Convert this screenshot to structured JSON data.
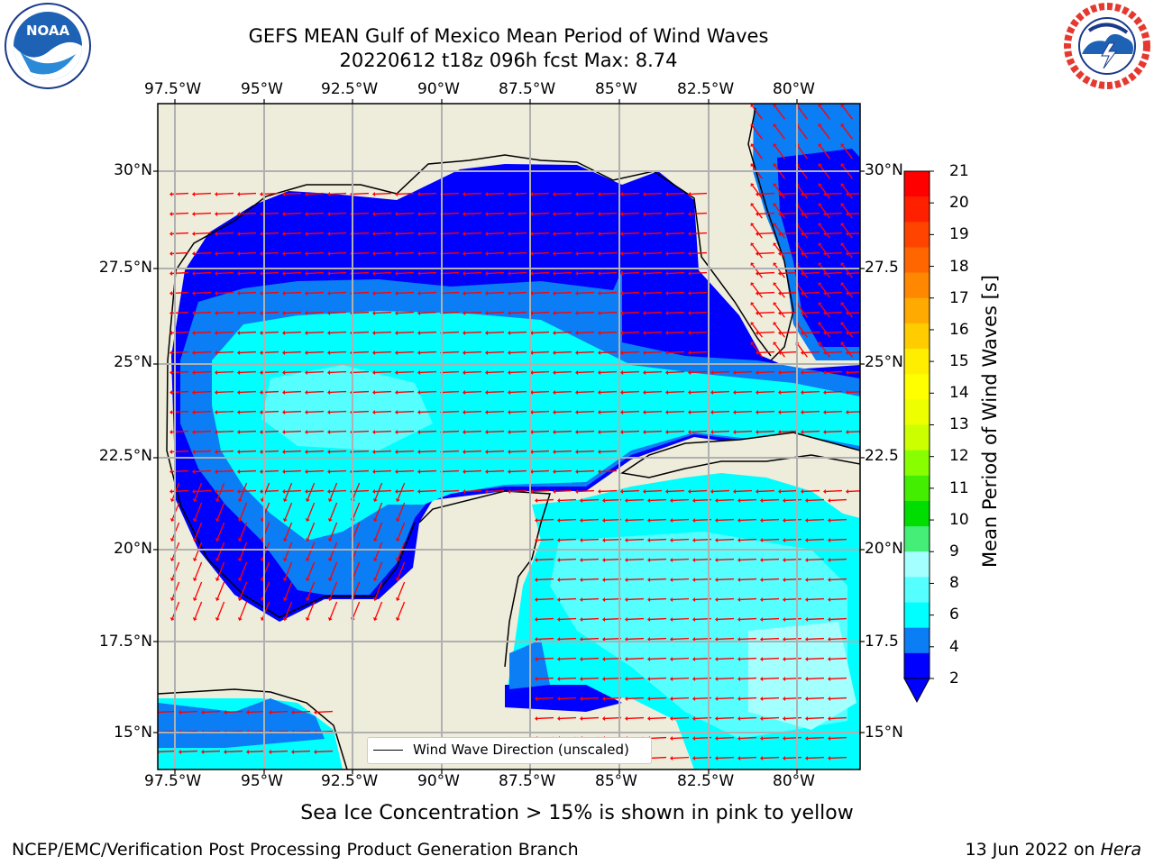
{
  "title": {
    "line1": "GEFS MEAN Gulf of Mexico Mean Period of Wind Waves",
    "line2": "20220612 t18z 096h fcst   Max: 8.74"
  },
  "logos": {
    "left": "NOAA",
    "right": "NATIONAL WEATHER SERVICE"
  },
  "map": {
    "lon_ticks": [
      "97.5°W",
      "95°W",
      "92.5°W",
      "90°W",
      "87.5°W",
      "85°W",
      "82.5°W",
      "80°W"
    ],
    "lat_ticks_left": [
      "30°N",
      "27.5°N",
      "25°N",
      "22.5°N",
      "20°N",
      "17.5°N",
      "15°N"
    ],
    "lat_ticks_right": [
      "30°N",
      "27.5",
      "25°N",
      "22.5",
      "20°N",
      "17.5",
      "15°N"
    ],
    "legend_label": "Wind Wave Direction (unscaled)",
    "colors": {
      "land": "#eeecdb",
      "deep_blue": "#0000ff",
      "mid_blue": "#0b7df5",
      "cyan": "#00ffff",
      "light_cyan": "#55ffff",
      "pale_cyan": "#a4ffff",
      "arrows": "#ff0000"
    }
  },
  "colorbar": {
    "label": "Mean Period of Wind Waves [s]",
    "ticks": [
      "21",
      "20",
      "19",
      "18",
      "17",
      "16",
      "15",
      "14",
      "13",
      "12",
      "11",
      "10",
      "9",
      "8",
      "6",
      "4",
      "2"
    ],
    "colors": [
      "#ff0000",
      "#ff2000",
      "#ff4400",
      "#ff6600",
      "#ff8800",
      "#ffaa00",
      "#ffcc00",
      "#ffee00",
      "#ffff00",
      "#eeff00",
      "#ccff00",
      "#88ff00",
      "#44ee00",
      "#00dd00",
      "#44ee77",
      "#a4ffff",
      "#55ffff",
      "#00ffff",
      "#0b7df5",
      "#0000ff"
    ]
  },
  "captions": {
    "sea_ice": "Sea Ice Concentration > 15% is shown in pink to yellow",
    "credit": "NCEP/EMC/Verification Post Processing Product Generation Branch",
    "date_prefix": "13 Jun 2022 on ",
    "date_machine": "Hera"
  }
}
